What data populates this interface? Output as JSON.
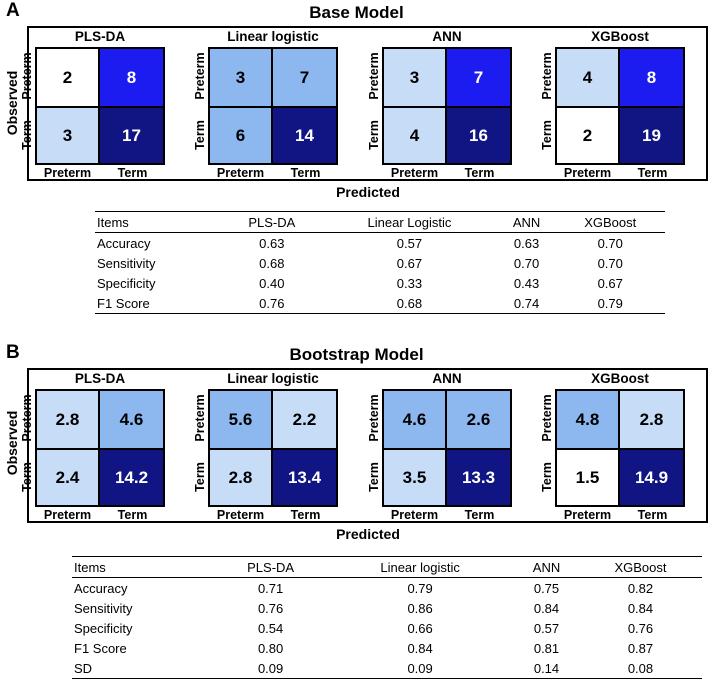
{
  "panel_a": {
    "letter": "A",
    "title": "Base Model",
    "y_label": "Observed",
    "x_label": "Predicted",
    "row_labels": [
      "Preterm",
      "Term"
    ],
    "col_labels": [
      "Preterm",
      "Term"
    ],
    "table": {
      "headers": [
        "Items",
        "PLS-DA",
        "Linear Logistic",
        "ANN",
        "XGBoost"
      ],
      "rows": [
        [
          "Accuracy",
          "0.63",
          "0.57",
          "0.63",
          "0.70"
        ],
        [
          "Sensitivity",
          "0.68",
          "0.67",
          "0.70",
          "0.70"
        ],
        [
          "Specificity",
          "0.40",
          "0.33",
          "0.43",
          "0.67"
        ],
        [
          "F1 Score",
          "0.76",
          "0.68",
          "0.74",
          "0.79"
        ]
      ]
    }
  },
  "panel_b": {
    "letter": "B",
    "title": "Bootstrap Model",
    "y_label": "Observed",
    "x_label": "Predicted",
    "row_labels": [
      "Preterm",
      "Term"
    ],
    "col_labels": [
      "Preterm",
      "Term"
    ],
    "table": {
      "headers": [
        "Items",
        "PLS-DA",
        "Linear logistic",
        "ANN",
        "XGBoost"
      ],
      "rows": [
        [
          "Accuracy",
          "0.71",
          "0.79",
          "0.75",
          "0.82"
        ],
        [
          "Sensitivity",
          "0.76",
          "0.86",
          "0.84",
          "0.84"
        ],
        [
          "Specificity",
          "0.54",
          "0.66",
          "0.57",
          "0.76"
        ],
        [
          "F1 Score",
          "0.80",
          "0.84",
          "0.81",
          "0.87"
        ],
        [
          "SD",
          "0.09",
          "0.09",
          "0.14",
          "0.08"
        ]
      ]
    }
  },
  "colors": {
    "white": "#ffffff",
    "light": "#c6dcf7",
    "medium": "#8db8ef",
    "bright": "#1c1cf0",
    "dark": "#101583",
    "text_dark": "#000000",
    "text_light": "#ffffff"
  },
  "chart_data": [
    {
      "type": "heatmap",
      "panel": "A",
      "title": "Base Model",
      "xlabel": "Predicted",
      "ylabel": "Observed",
      "row_categories": [
        "Preterm",
        "Term"
      ],
      "col_categories": [
        "Preterm",
        "Term"
      ],
      "matrices": [
        {
          "name": "PLS-DA",
          "values": [
            [
              "2",
              "8"
            ],
            [
              "3",
              "17"
            ]
          ],
          "fills": [
            [
              "white",
              "bright"
            ],
            [
              "light",
              "dark"
            ]
          ]
        },
        {
          "name": "Linear logistic",
          "values": [
            [
              "3",
              "7"
            ],
            [
              "6",
              "14"
            ]
          ],
          "fills": [
            [
              "medium",
              "medium"
            ],
            [
              "medium",
              "dark"
            ]
          ]
        },
        {
          "name": "ANN",
          "values": [
            [
              "3",
              "7"
            ],
            [
              "4",
              "16"
            ]
          ],
          "fills": [
            [
              "light",
              "bright"
            ],
            [
              "light",
              "dark"
            ]
          ]
        },
        {
          "name": "XGBoost",
          "values": [
            [
              "4",
              "8"
            ],
            [
              "2",
              "19"
            ]
          ],
          "fills": [
            [
              "light",
              "bright"
            ],
            [
              "white",
              "dark"
            ]
          ]
        }
      ]
    },
    {
      "type": "heatmap",
      "panel": "B",
      "title": "Bootstrap Model",
      "xlabel": "Predicted",
      "ylabel": "Observed",
      "row_categories": [
        "Preterm",
        "Term"
      ],
      "col_categories": [
        "Preterm",
        "Term"
      ],
      "matrices": [
        {
          "name": "PLS-DA",
          "values": [
            [
              "2.8",
              "4.6"
            ],
            [
              "2.4",
              "14.2"
            ]
          ],
          "fills": [
            [
              "light",
              "medium"
            ],
            [
              "light",
              "dark"
            ]
          ]
        },
        {
          "name": "Linear logistic",
          "values": [
            [
              "5.6",
              "2.2"
            ],
            [
              "2.8",
              "13.4"
            ]
          ],
          "fills": [
            [
              "medium",
              "light"
            ],
            [
              "light",
              "dark"
            ]
          ]
        },
        {
          "name": "ANN",
          "values": [
            [
              "4.6",
              "2.6"
            ],
            [
              "3.5",
              "13.3"
            ]
          ],
          "fills": [
            [
              "medium",
              "medium"
            ],
            [
              "light",
              "dark"
            ]
          ]
        },
        {
          "name": "XGBoost",
          "values": [
            [
              "4.8",
              "2.8"
            ],
            [
              "1.5",
              "14.9"
            ]
          ],
          "fills": [
            [
              "medium",
              "light"
            ],
            [
              "white",
              "dark"
            ]
          ]
        }
      ]
    }
  ]
}
